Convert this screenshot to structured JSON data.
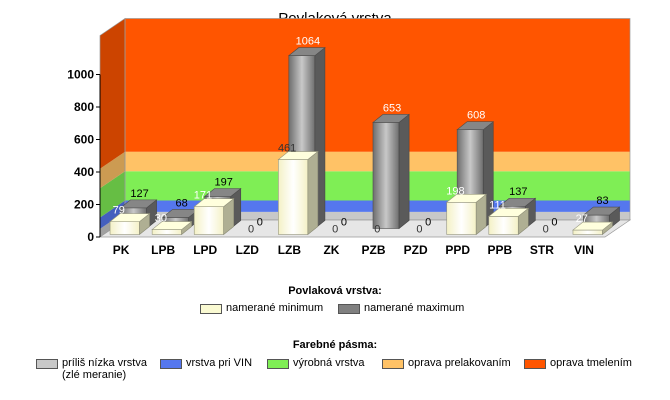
{
  "chart_data": {
    "type": "bar",
    "title": "Povlaková vrstva",
    "categories": [
      "PK",
      "LPB",
      "LPD",
      "LZD",
      "LZB",
      "ZK",
      "PZB",
      "PZD",
      "PPD",
      "PPB",
      "STR",
      "VIN"
    ],
    "series": [
      {
        "name": "namerané minimum",
        "values": [
          79,
          30,
          171,
          0,
          461,
          0,
          0,
          0,
          198,
          111,
          0,
          27
        ],
        "color": "#fafad2"
      },
      {
        "name": "namerané maximum",
        "values": [
          127,
          68,
          197,
          0,
          1064,
          0,
          653,
          0,
          608,
          137,
          0,
          83
        ],
        "color": "#808080"
      }
    ],
    "ylim": [
      0,
      1000
    ],
    "yticks": [
      0,
      200,
      400,
      600,
      800,
      1000
    ],
    "bands": [
      {
        "label": "príliš nízka vrstva\n(zlé meranie)",
        "from": 0,
        "to": 50,
        "color": "#c8c8c8"
      },
      {
        "label": "vrstva pri VIN",
        "from": 50,
        "to": 120,
        "color": "#5577ee"
      },
      {
        "label": "výrobná vrstva",
        "from": 120,
        "to": 300,
        "color": "#7fee55"
      },
      {
        "label": "oprava prelakovaním",
        "from": 300,
        "to": 420,
        "color": "#ffc266"
      },
      {
        "label": "oprava tmelením",
        "from": 420,
        "to": 1240,
        "color": "#ff5500"
      }
    ],
    "legend_series_title": "Povlaková vrstva:",
    "legend_bands_title": "Farebné pásma:"
  }
}
